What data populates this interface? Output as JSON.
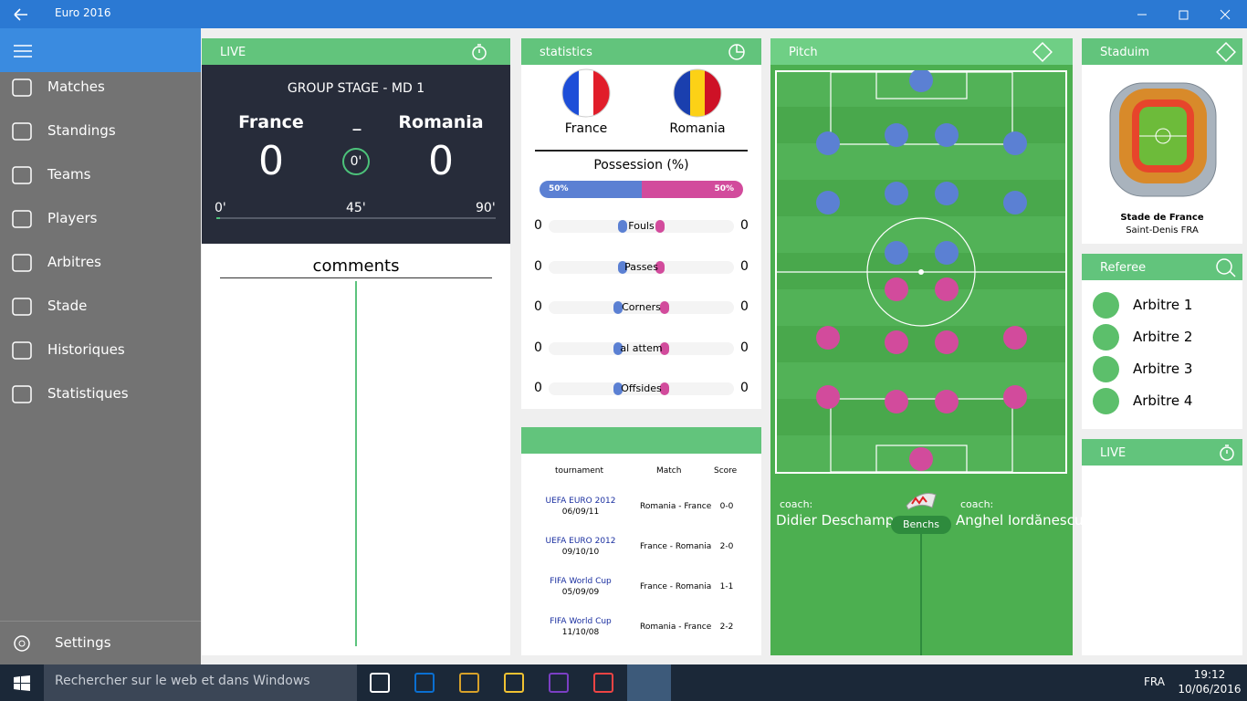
{
  "app": {
    "title": "Euro 2016"
  },
  "nav": {
    "items": [
      "Matches",
      "Standings",
      "Teams",
      "Players",
      "Arbitres",
      "Stade",
      "Historiques",
      "Statistiques"
    ],
    "settings": "Settings"
  },
  "live": {
    "header": "LIVE",
    "stage": "GROUP STAGE - MD 1",
    "home": "France",
    "separator": "_",
    "away": "Romania",
    "home_score": "0",
    "minute": "0'",
    "away_score": "0",
    "timeline": [
      "0'",
      "45'",
      "90'"
    ]
  },
  "comments": {
    "title": "comments"
  },
  "statistics": {
    "header": "statistics",
    "home": "France",
    "away": "Romania",
    "possession": {
      "label": "Possession (%)",
      "home": "50%",
      "away": "50%"
    },
    "rows": [
      {
        "home": "0",
        "label": "Fouls",
        "away": "0"
      },
      {
        "home": "0",
        "label": "Passes",
        "away": "0"
      },
      {
        "home": "0",
        "label": "Corners",
        "away": "0"
      },
      {
        "home": "0",
        "label": "al attem",
        "away": "0"
      },
      {
        "home": "0",
        "label": "Offsides",
        "away": "0"
      }
    ]
  },
  "history": {
    "columns": [
      "tournament",
      "Match",
      "Score"
    ],
    "rows": [
      {
        "tournament": "UEFA EURO 2012",
        "date": "06/09/11",
        "match": "Romania - France",
        "score": "0-0"
      },
      {
        "tournament": "UEFA EURO 2012",
        "date": "09/10/10",
        "match": "France - Romania",
        "score": "2-0"
      },
      {
        "tournament": "FIFA World Cup",
        "date": "05/09/09",
        "match": "France - Romania",
        "score": "1-1"
      },
      {
        "tournament": "FIFA World Cup",
        "date": "11/10/08",
        "match": "Romania - France",
        "score": "2-2"
      }
    ]
  },
  "pitch": {
    "header": "Pitch",
    "home_coach_label": "coach:",
    "home_coach": "Didier Deschamps",
    "bench": "Benchs",
    "away_coach_label": "coach:",
    "away_coach": "Anghel Iordănescu"
  },
  "stadium": {
    "header": "Staduim",
    "name": "Stade de France",
    "city": "Saint-Denis FRA"
  },
  "referee": {
    "header": "Referee",
    "names": [
      "Arbitre 1",
      "Arbitre 2",
      "Arbitre 3",
      "Arbitre 4"
    ]
  },
  "live2": {
    "header": "LIVE"
  },
  "taskbar": {
    "search": "Rechercher sur le web et dans Windows",
    "language": "FRA",
    "time": "19:12",
    "date": "10/06/2016"
  }
}
